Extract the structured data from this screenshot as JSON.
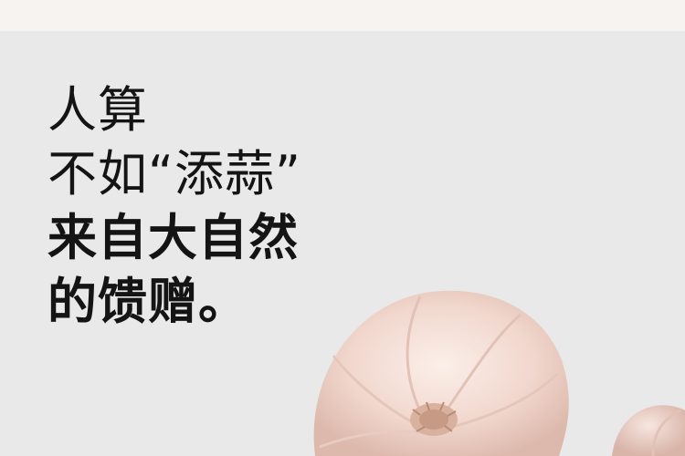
{
  "headline": {
    "line1": "人算",
    "line2": "不如“添蒜”",
    "line3": "来自大自然",
    "line4": "的馈赠。"
  },
  "colors": {
    "background": "#e9e9e9",
    "top_band": "#f7f3f0",
    "text": "#141414",
    "garlic_skin": "#f1d9d1"
  },
  "image": {
    "subject": "garlic-bulbs"
  }
}
